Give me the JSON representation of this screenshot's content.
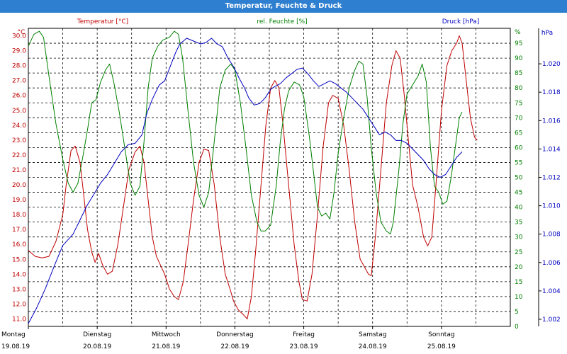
{
  "window": {
    "title": "Temperatur, Feuchte & Druck"
  },
  "chart_data": {
    "type": "line",
    "title": "Temperatur, Feuchte & Druck",
    "grid": true,
    "x_range": [
      0,
      7
    ],
    "day_ticks": [
      {
        "day": "Montag",
        "date": "19.08.19"
      },
      {
        "day": "Dienstag",
        "date": "20.08.19"
      },
      {
        "day": "Mittwoch",
        "date": "21.08.19"
      },
      {
        "day": "Donnerstag",
        "date": "22.08.19"
      },
      {
        "day": "Freitag",
        "date": "23.08.19"
      },
      {
        "day": "Samstag",
        "date": "24.08.19"
      },
      {
        "day": "Sonntag",
        "date": "25.08.19"
      }
    ],
    "axes": {
      "temperature": {
        "label": "Temperatur [°C]",
        "unit": "°C",
        "color": "#c00000",
        "side": "left",
        "range": [
          10.5,
          30.5
        ],
        "ticks": [
          "11.0",
          "12.0",
          "13.0",
          "14.0",
          "15.0",
          "16.0",
          "17.0",
          "18.0",
          "19.0",
          "20.0",
          "21.0",
          "22.0",
          "23.0",
          "24.0",
          "25.0",
          "26.0",
          "27.0",
          "28.0",
          "29.0",
          "30.0"
        ]
      },
      "humidity": {
        "label": "rel. Feuchte [%]",
        "unit": "%",
        "color": "#008000",
        "side": "right",
        "range": [
          0,
          100
        ],
        "ticks": [
          "0",
          "5",
          "10",
          "15",
          "20",
          "25",
          "30",
          "35",
          "40",
          "45",
          "50",
          "55",
          "60",
          "65",
          "70",
          "75",
          "80",
          "85",
          "90",
          "95"
        ]
      },
      "pressure": {
        "label": "Druck [hPa]",
        "unit": "hPa",
        "color": "#0000c0",
        "side": "right",
        "range": [
          1.0015,
          1.0225
        ],
        "ticks": [
          "1.002",
          "1.004",
          "1.006",
          "1.008",
          "1.010",
          "1.012",
          "1.014",
          "1.016",
          "1.018",
          "1.020"
        ]
      }
    },
    "series": [
      {
        "name": "Temperatur [°C]",
        "axis": "temperature",
        "color": "#c00000",
        "points": [
          [
            0,
            15.6
          ],
          [
            0.1,
            15.2
          ],
          [
            0.2,
            15.1
          ],
          [
            0.3,
            15.2
          ],
          [
            0.4,
            16.2
          ],
          [
            0.5,
            18.0
          ],
          [
            0.55,
            20.0
          ],
          [
            0.62,
            22.3
          ],
          [
            0.68,
            22.6
          ],
          [
            0.75,
            21.5
          ],
          [
            0.8,
            19.5
          ],
          [
            0.86,
            17.0
          ],
          [
            0.92,
            15.5
          ],
          [
            0.97,
            14.8
          ],
          [
            1.02,
            15.4
          ],
          [
            1.08,
            14.6
          ],
          [
            1.15,
            14.0
          ],
          [
            1.22,
            14.2
          ],
          [
            1.3,
            16.0
          ],
          [
            1.38,
            18.5
          ],
          [
            1.46,
            21.0
          ],
          [
            1.55,
            22.2
          ],
          [
            1.62,
            22.6
          ],
          [
            1.68,
            21.5
          ],
          [
            1.74,
            19.0
          ],
          [
            1.8,
            16.5
          ],
          [
            1.86,
            15.2
          ],
          [
            1.92,
            14.6
          ],
          [
            1.98,
            14.0
          ],
          [
            2.05,
            13.0
          ],
          [
            2.12,
            12.5
          ],
          [
            2.18,
            12.3
          ],
          [
            2.25,
            13.5
          ],
          [
            2.32,
            16.0
          ],
          [
            2.4,
            19.0
          ],
          [
            2.48,
            21.5
          ],
          [
            2.55,
            22.4
          ],
          [
            2.62,
            22.3
          ],
          [
            2.7,
            20.0
          ],
          [
            2.78,
            16.5
          ],
          [
            2.86,
            14.0
          ],
          [
            2.93,
            13.0
          ],
          [
            2.98,
            12.2
          ],
          [
            3.05,
            11.6
          ],
          [
            3.12,
            11.3
          ],
          [
            3.18,
            11.0
          ],
          [
            3.24,
            12.5
          ],
          [
            3.3,
            15.5
          ],
          [
            3.38,
            20.0
          ],
          [
            3.45,
            24.0
          ],
          [
            3.52,
            26.5
          ],
          [
            3.58,
            27.0
          ],
          [
            3.64,
            26.5
          ],
          [
            3.7,
            24.0
          ],
          [
            3.78,
            20.0
          ],
          [
            3.86,
            16.0
          ],
          [
            3.93,
            13.5
          ],
          [
            3.98,
            12.3
          ],
          [
            4.05,
            12.2
          ],
          [
            4.12,
            14.0
          ],
          [
            4.2,
            18.0
          ],
          [
            4.28,
            22.5
          ],
          [
            4.36,
            25.5
          ],
          [
            4.42,
            26.0
          ],
          [
            4.5,
            25.8
          ],
          [
            4.58,
            24.0
          ],
          [
            4.66,
            21.0
          ],
          [
            4.74,
            17.5
          ],
          [
            4.82,
            15.0
          ],
          [
            4.88,
            14.5
          ],
          [
            4.94,
            14.0
          ],
          [
            4.98,
            13.9
          ],
          [
            5.04,
            16.5
          ],
          [
            5.12,
            21.0
          ],
          [
            5.2,
            25.5
          ],
          [
            5.28,
            28.0
          ],
          [
            5.34,
            29.0
          ],
          [
            5.4,
            28.5
          ],
          [
            5.46,
            26.0
          ],
          [
            5.52,
            23.0
          ],
          [
            5.58,
            20.0
          ],
          [
            5.66,
            18.5
          ],
          [
            5.74,
            16.5
          ],
          [
            5.8,
            15.9
          ],
          [
            5.86,
            16.5
          ],
          [
            5.92,
            20.0
          ],
          [
            6.0,
            25.0
          ],
          [
            6.08,
            28.0
          ],
          [
            6.15,
            29.0
          ],
          [
            6.22,
            29.5
          ],
          [
            6.26,
            30.0
          ],
          [
            6.3,
            29.5
          ],
          [
            6.36,
            27.0
          ],
          [
            6.42,
            24.5
          ],
          [
            6.48,
            23.2
          ],
          [
            6.52,
            23.0
          ]
        ]
      },
      {
        "name": "rel. Feuchte [%]",
        "axis": "humidity",
        "color": "#008000",
        "points": [
          [
            0,
            94
          ],
          [
            0.08,
            98
          ],
          [
            0.16,
            99
          ],
          [
            0.22,
            97
          ],
          [
            0.3,
            84
          ],
          [
            0.4,
            68
          ],
          [
            0.5,
            56
          ],
          [
            0.58,
            48
          ],
          [
            0.65,
            45
          ],
          [
            0.72,
            48
          ],
          [
            0.8,
            58
          ],
          [
            0.86,
            66
          ],
          [
            0.92,
            75
          ],
          [
            0.98,
            76
          ],
          [
            1.05,
            82
          ],
          [
            1.12,
            86
          ],
          [
            1.18,
            88
          ],
          [
            1.24,
            82
          ],
          [
            1.32,
            72
          ],
          [
            1.4,
            60
          ],
          [
            1.48,
            48
          ],
          [
            1.55,
            44
          ],
          [
            1.62,
            47
          ],
          [
            1.68,
            62
          ],
          [
            1.74,
            80
          ],
          [
            1.8,
            90
          ],
          [
            1.88,
            94
          ],
          [
            1.95,
            96
          ],
          [
            2.05,
            97
          ],
          [
            2.12,
            99
          ],
          [
            2.18,
            98
          ],
          [
            2.24,
            90
          ],
          [
            2.32,
            72
          ],
          [
            2.4,
            55
          ],
          [
            2.48,
            44
          ],
          [
            2.55,
            40
          ],
          [
            2.62,
            45
          ],
          [
            2.7,
            62
          ],
          [
            2.78,
            80
          ],
          [
            2.86,
            86
          ],
          [
            2.94,
            88
          ],
          [
            3.0,
            86
          ],
          [
            3.08,
            75
          ],
          [
            3.16,
            60
          ],
          [
            3.24,
            44
          ],
          [
            3.32,
            35
          ],
          [
            3.38,
            32
          ],
          [
            3.44,
            32
          ],
          [
            3.52,
            34
          ],
          [
            3.6,
            47
          ],
          [
            3.66,
            62
          ],
          [
            3.72,
            73
          ],
          [
            3.78,
            79
          ],
          [
            3.86,
            82
          ],
          [
            3.94,
            81
          ],
          [
            4.0,
            77
          ],
          [
            4.08,
            64
          ],
          [
            4.14,
            52
          ],
          [
            4.2,
            40
          ],
          [
            4.26,
            37
          ],
          [
            4.32,
            38
          ],
          [
            4.38,
            36
          ],
          [
            4.44,
            45
          ],
          [
            4.5,
            58
          ],
          [
            4.58,
            70
          ],
          [
            4.66,
            80
          ],
          [
            4.74,
            86
          ],
          [
            4.8,
            89
          ],
          [
            4.86,
            88
          ],
          [
            4.92,
            77
          ],
          [
            4.98,
            60
          ],
          [
            5.05,
            45
          ],
          [
            5.12,
            35
          ],
          [
            5.2,
            32
          ],
          [
            5.26,
            31
          ],
          [
            5.3,
            35
          ],
          [
            5.38,
            52
          ],
          [
            5.44,
            68
          ],
          [
            5.5,
            78
          ],
          [
            5.58,
            81
          ],
          [
            5.66,
            84
          ],
          [
            5.72,
            88
          ],
          [
            5.78,
            82
          ],
          [
            5.84,
            60
          ],
          [
            5.9,
            47
          ],
          [
            5.96,
            45
          ],
          [
            6.02,
            41
          ],
          [
            6.08,
            42
          ],
          [
            6.14,
            50
          ],
          [
            6.2,
            60
          ],
          [
            6.26,
            70
          ],
          [
            6.3,
            72
          ]
        ]
      },
      {
        "name": "Druck [hPa]",
        "axis": "pressure",
        "color": "#0000c0",
        "points": [
          [
            0,
            1.0017
          ],
          [
            0.12,
            1.0028
          ],
          [
            0.25,
            1.0042
          ],
          [
            0.38,
            1.0058
          ],
          [
            0.5,
            1.0072
          ],
          [
            0.65,
            1.008
          ],
          [
            0.75,
            1.009
          ],
          [
            0.85,
            1.01
          ],
          [
            0.95,
            1.0108
          ],
          [
            1.05,
            1.0116
          ],
          [
            1.15,
            1.0122
          ],
          [
            1.25,
            1.013
          ],
          [
            1.35,
            1.0138
          ],
          [
            1.45,
            1.0143
          ],
          [
            1.55,
            1.0144
          ],
          [
            1.65,
            1.015
          ],
          [
            1.72,
            1.0165
          ],
          [
            1.8,
            1.0175
          ],
          [
            1.9,
            1.0185
          ],
          [
            1.98,
            1.0188
          ],
          [
            2.06,
            1.0198
          ],
          [
            2.14,
            1.0208
          ],
          [
            2.2,
            1.0214
          ],
          [
            2.3,
            1.0218
          ],
          [
            2.4,
            1.0216
          ],
          [
            2.5,
            1.0214
          ],
          [
            2.58,
            1.0215
          ],
          [
            2.66,
            1.0218
          ],
          [
            2.74,
            1.0214
          ],
          [
            2.82,
            1.0212
          ],
          [
            2.9,
            1.0204
          ],
          [
            2.98,
            1.0198
          ],
          [
            3.06,
            1.019
          ],
          [
            3.14,
            1.0183
          ],
          [
            3.2,
            1.0176
          ],
          [
            3.28,
            1.0171
          ],
          [
            3.36,
            1.0172
          ],
          [
            3.44,
            1.0176
          ],
          [
            3.52,
            1.0182
          ],
          [
            3.58,
            1.0184
          ],
          [
            3.66,
            1.0186
          ],
          [
            3.74,
            1.019
          ],
          [
            3.82,
            1.0193
          ],
          [
            3.9,
            1.0196
          ],
          [
            3.98,
            1.0197
          ],
          [
            4.06,
            1.0193
          ],
          [
            4.14,
            1.0188
          ],
          [
            4.22,
            1.0184
          ],
          [
            4.3,
            1.0186
          ],
          [
            4.38,
            1.0188
          ],
          [
            4.46,
            1.0186
          ],
          [
            4.54,
            1.0183
          ],
          [
            4.62,
            1.018
          ],
          [
            4.7,
            1.0176
          ],
          [
            4.78,
            1.0172
          ],
          [
            4.86,
            1.0168
          ],
          [
            4.94,
            1.0162
          ],
          [
            5.02,
            1.0156
          ],
          [
            5.1,
            1.015
          ],
          [
            5.18,
            1.0152
          ],
          [
            5.26,
            1.015
          ],
          [
            5.34,
            1.0146
          ],
          [
            5.42,
            1.0146
          ],
          [
            5.5,
            1.0144
          ],
          [
            5.58,
            1.014
          ],
          [
            5.66,
            1.0136
          ],
          [
            5.74,
            1.0132
          ],
          [
            5.82,
            1.0126
          ],
          [
            5.9,
            1.0122
          ],
          [
            5.98,
            1.012
          ],
          [
            6.06,
            1.0122
          ],
          [
            6.14,
            1.0128
          ],
          [
            6.22,
            1.0134
          ],
          [
            6.3,
            1.0138
          ]
        ]
      }
    ]
  }
}
